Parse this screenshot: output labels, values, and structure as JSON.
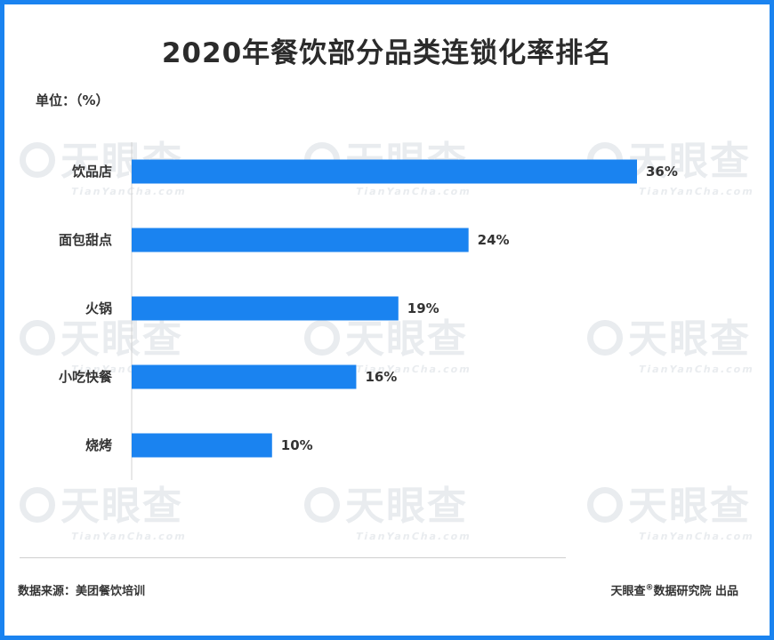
{
  "header": {
    "title": "2020年餐饮部分品类连锁化率排名"
  },
  "unit_label": "单位：（%）",
  "watermark": {
    "main": "天眼查",
    "sub": "TianYanCha.com"
  },
  "chart_data": {
    "type": "bar",
    "orientation": "horizontal",
    "title": "2020年餐饮部分品类连锁化率排名",
    "categories": [
      "饮品店",
      "面包甜点",
      "火锅",
      "小吃快餐",
      "烧烤"
    ],
    "values": [
      36,
      24,
      19,
      16,
      10
    ],
    "value_labels": [
      "36%",
      "24%",
      "19%",
      "16%",
      "10%"
    ],
    "xlim": [
      0,
      36
    ],
    "bar_color": "#1a83f0",
    "grid": false
  },
  "footer": {
    "source": "数据来源：美团餐饮培训",
    "credit_brand": "天眼查",
    "credit_mark": "®",
    "credit_rest": "数据研究院 出品"
  }
}
